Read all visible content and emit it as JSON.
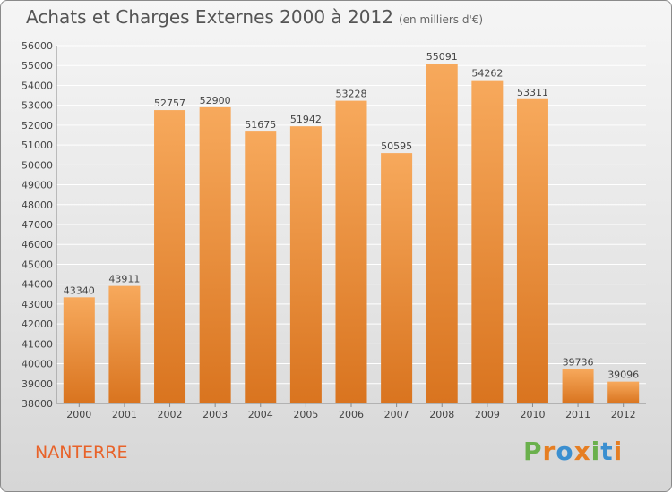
{
  "title": "Achats et Charges Externes 2000 à 2012",
  "subtitle": "(en milliers d'€)",
  "location": "NANTERRE",
  "logo": {
    "letters": [
      "P",
      "r",
      "o",
      "x",
      "i",
      "t",
      "i"
    ],
    "colors": [
      "#6ab04c",
      "#e67e22",
      "#3b8fd0",
      "#e67e22",
      "#6ab04c",
      "#3b8fd0",
      "#e67e22"
    ]
  },
  "colors": {
    "bar_top": "#f7a95c",
    "bar_bottom": "#d9741f",
    "grid": "#ffffff",
    "text": "#444444"
  },
  "chart_data": {
    "type": "bar",
    "title": "Achats et Charges Externes 2000 à 2012",
    "categories": [
      "2000",
      "2001",
      "2002",
      "2003",
      "2004",
      "2005",
      "2006",
      "2007",
      "2008",
      "2009",
      "2010",
      "2011",
      "2012"
    ],
    "values": [
      43340,
      43911,
      52757,
      52900,
      51675,
      51942,
      53228,
      50595,
      55091,
      54262,
      53311,
      39736,
      39096
    ],
    "ylim": [
      38000,
      56000
    ],
    "yticks": [
      38000,
      39000,
      40000,
      41000,
      42000,
      43000,
      44000,
      45000,
      46000,
      47000,
      48000,
      49000,
      50000,
      51000,
      52000,
      53000,
      54000,
      55000,
      56000
    ],
    "grid": true,
    "data_labels": true
  }
}
